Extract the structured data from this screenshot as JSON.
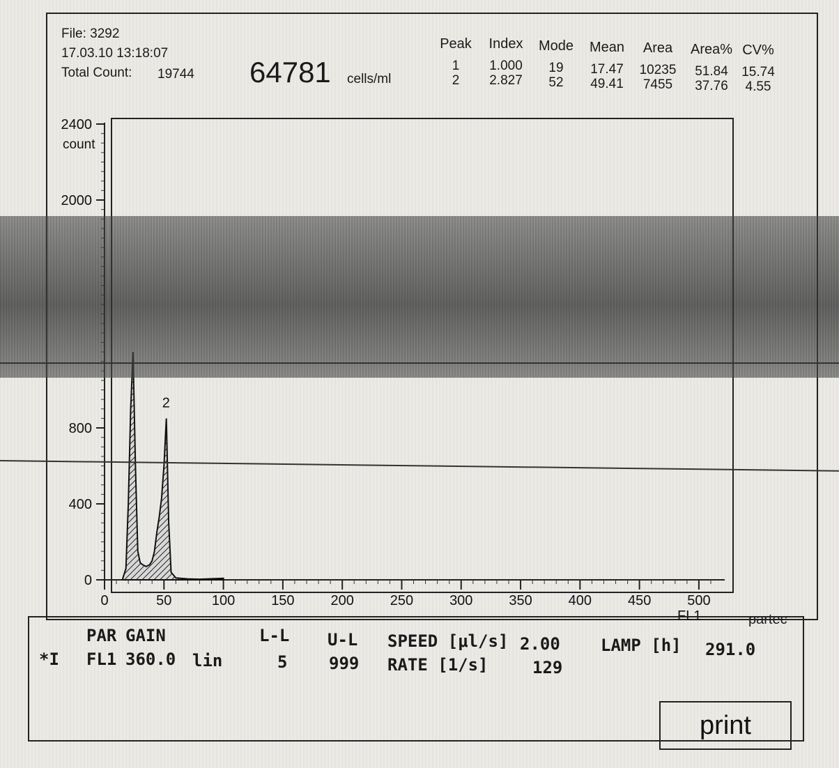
{
  "header": {
    "file": "File: 3292",
    "datetime": "17.03.10 13:18:07",
    "total_count_label": "Total Count:",
    "total_count_value": "19744",
    "concentration": "64781",
    "concentration_units": "cells/ml"
  },
  "stats": {
    "columns": [
      "Peak",
      "Index",
      "Mode",
      "Mean",
      "Area",
      "Area%",
      "CV%"
    ],
    "rows": [
      [
        "1",
        "1.000",
        "19",
        "17.47",
        "10235",
        "51.84",
        "15.74"
      ],
      [
        "2",
        "2.827",
        "52",
        "49.41",
        "7455",
        "37.76",
        "4.55"
      ]
    ]
  },
  "chart_data": {
    "type": "area",
    "ylabel": "count",
    "xlabel": "FL1",
    "x_ticks": [
      0,
      50,
      100,
      150,
      200,
      250,
      300,
      350,
      400,
      450,
      500
    ],
    "y_ticks": [
      0,
      400,
      800,
      2000,
      2400
    ],
    "xlim": [
      0,
      510
    ],
    "ylim": [
      0,
      2400
    ],
    "peak_labels": [
      {
        "label": "2",
        "x": 52
      }
    ],
    "x": [
      15,
      18,
      20,
      22,
      24,
      26,
      28,
      30,
      32,
      35,
      38,
      40,
      42,
      44,
      46,
      48,
      50,
      52,
      54,
      56,
      60,
      70,
      80,
      100
    ],
    "y": [
      0,
      60,
      400,
      900,
      1200,
      600,
      150,
      90,
      80,
      70,
      80,
      100,
      150,
      250,
      330,
      430,
      600,
      850,
      300,
      40,
      10,
      5,
      3,
      8
    ]
  },
  "brand": "partec",
  "settings": {
    "par_label": "PAR",
    "gain_label": "GAIN",
    "ll_label": "L-L",
    "ul_label": "U-L",
    "speed_label": "SPEED [μl/s]",
    "speed_value": "2.00",
    "lamp_label": "LAMP [h]",
    "lamp_value": "291.0",
    "row_marker": "*I",
    "channel": "FL1",
    "gain_value": "360.0",
    "scale": "lin",
    "ll_value": "5",
    "ul_value": "999",
    "rate_label": "RATE [1/s]",
    "rate_value": "129"
  },
  "print_label": "print"
}
